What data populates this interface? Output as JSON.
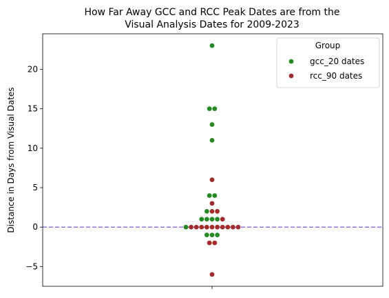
{
  "chart_data": {
    "type": "scatter",
    "subtype": "swarm",
    "title_lines": [
      "How Far Away GCC and RCC Peak Dates are from the",
      "Visual Analysis Dates for 2009-2023"
    ],
    "xlabel": "",
    "ylabel": "Distance in Days from Visual Dates",
    "ylim": [
      -7.5,
      24.5
    ],
    "yticks": [
      -5,
      0,
      5,
      10,
      15,
      20
    ],
    "grid": false,
    "legend": {
      "title": "Group",
      "placement": "top-right"
    },
    "reference_line": {
      "y": 0,
      "style": "dashed",
      "color": "#9370db"
    },
    "series": [
      {
        "name": "gcc_20 dates",
        "color": "#228b22",
        "values": [
          23,
          15,
          15,
          13,
          11,
          4,
          4,
          2,
          1,
          1,
          1,
          1,
          0,
          -1,
          -1,
          -1
        ]
      },
      {
        "name": "rcc_90 dates",
        "color": "#a52a2a",
        "values": [
          6,
          3,
          2,
          2,
          1,
          0,
          0,
          0,
          0,
          0,
          0,
          0,
          0,
          0,
          0,
          -2,
          -2,
          -6
        ]
      }
    ]
  }
}
